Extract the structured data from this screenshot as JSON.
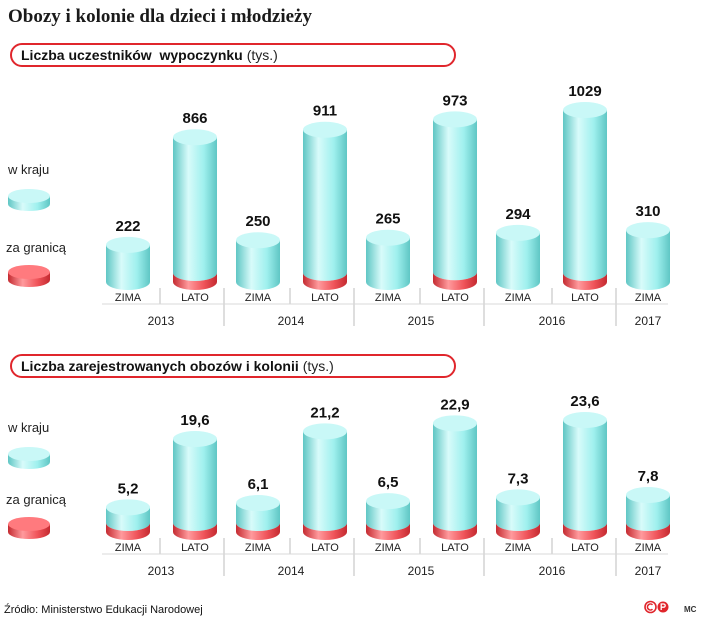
{
  "title": "Obozy i kolonie dla dzieci i młodzieży",
  "source": "Źródło: Ministerstwo Edukacji Narodowej",
  "credit": "MC",
  "colors": {
    "domestic": "#9ff0ee",
    "domestic_dark": "#5fc6c4",
    "abroad": "#f0545a",
    "abroad_dark": "#c42a30",
    "header_border": "#e0262c"
  },
  "icons": {
    "logo": "pap-logo-icon"
  },
  "chart_data": [
    {
      "type": "bar",
      "title": "Liczba uczestników  wypoczynku",
      "unit": "(tys.)",
      "legend": [
        "w kraju",
        "za granicą"
      ],
      "legend_position": "left",
      "categories": [
        "ZIMA",
        "LATO",
        "ZIMA",
        "LATO",
        "ZIMA",
        "LATO",
        "ZIMA",
        "LATO",
        "ZIMA"
      ],
      "groups": [
        "2013",
        "2014",
        "2015",
        "2016",
        "2017"
      ],
      "labels": [
        "222",
        "866",
        "250",
        "911",
        "265",
        "973",
        "294",
        "1029",
        "310"
      ],
      "values": [
        222,
        866,
        250,
        911,
        265,
        973,
        294,
        1029,
        310
      ],
      "abroad_share": [
        0,
        0.06,
        0,
        0.06,
        0,
        0.06,
        0,
        0.05,
        0
      ]
    },
    {
      "type": "bar",
      "title": "Liczba zarejestrowanych obozów i kolonii",
      "unit": "(tys.)",
      "legend": [
        "w kraju",
        "za granicą"
      ],
      "legend_position": "left",
      "categories": [
        "ZIMA",
        "LATO",
        "ZIMA",
        "LATO",
        "ZIMA",
        "LATO",
        "ZIMA",
        "LATO",
        "ZIMA"
      ],
      "groups": [
        "2013",
        "2014",
        "2015",
        "2016",
        "2017"
      ],
      "labels": [
        "5,2",
        "19,6",
        "6,1",
        "21,2",
        "6,5",
        "22,9",
        "7,3",
        "23,6",
        "7,8"
      ],
      "values": [
        5.2,
        19.6,
        6.1,
        21.2,
        6.5,
        22.9,
        7.3,
        23.6,
        7.8
      ],
      "abroad_share": [
        0.05,
        0.05,
        0.05,
        0.05,
        0.05,
        0.05,
        0.05,
        0.05,
        0.05
      ]
    }
  ]
}
